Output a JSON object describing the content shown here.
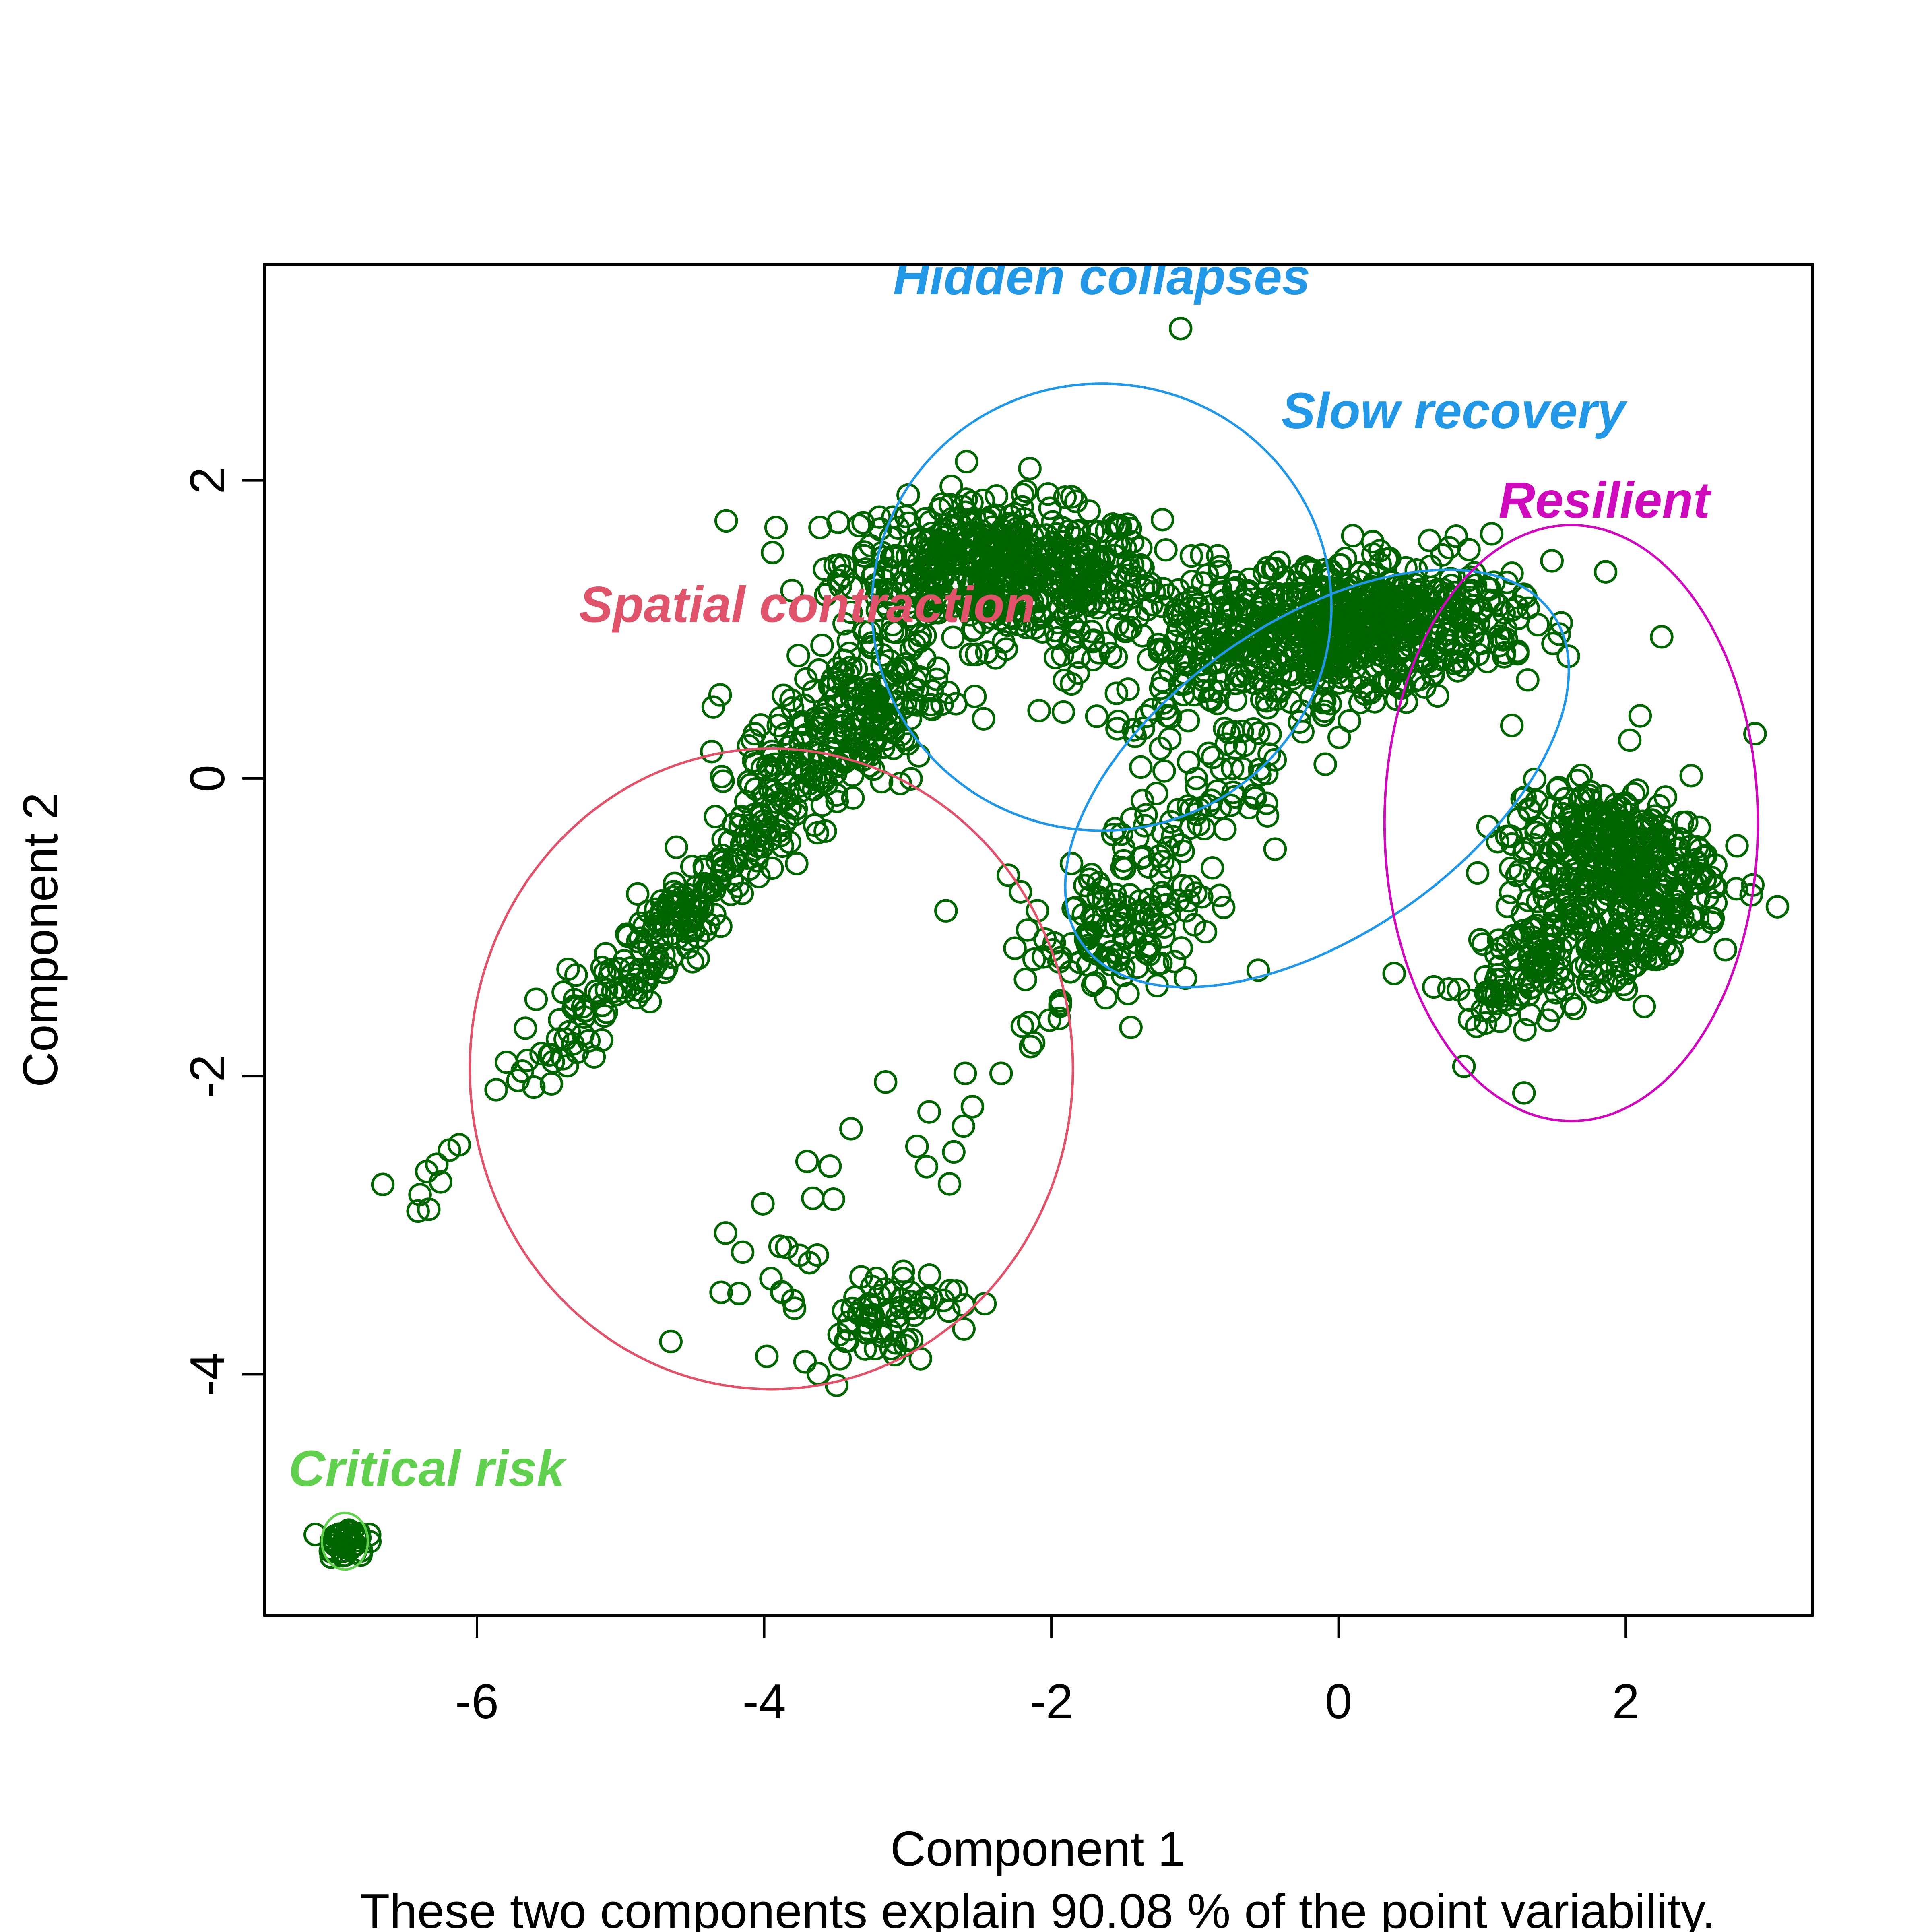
{
  "chart_data": {
    "type": "scatter",
    "xlabel": "Component 1",
    "ylabel": "Component 2",
    "subtitle": "These two components explain 90.08 % of the point variability.",
    "xlim": [
      -7.48,
      3.3
    ],
    "ylim": [
      -5.62,
      3.45
    ],
    "xticks": [
      -6,
      -4,
      -2,
      0,
      2
    ],
    "yticks": [
      -4,
      -2,
      0,
      2
    ],
    "point_color": "#006400",
    "point_shape": "open-circle",
    "clusters": [
      {
        "name": "Spatial contraction",
        "color": "#DF536B",
        "center": [
          -3.95,
          -1.95
        ],
        "radii": [
          2.1,
          2.15
        ],
        "rotation_deg": 0,
        "label_anchor": [
          -3.7,
          1.05
        ],
        "label_text": "Spatial contraction"
      },
      {
        "name": "Hidden collapses",
        "color": "#2297E6",
        "center": [
          -1.65,
          1.15
        ],
        "radii": [
          1.6,
          1.5
        ],
        "rotation_deg": 0,
        "label_anchor": [
          -1.65,
          3.25
        ],
        "label_text": "Hidden collapses"
      },
      {
        "name": "Slow recovery",
        "color": "#2297E6",
        "center": [
          -0.15,
          0.0
        ],
        "radii": [
          2.0,
          1.05
        ],
        "rotation_deg": 35,
        "label_anchor": [
          0.8,
          2.35
        ],
        "label_text": "Slow recovery"
      },
      {
        "name": "Resilient",
        "color": "#CD0BBC",
        "center": [
          1.62,
          -0.3
        ],
        "radii": [
          1.3,
          2.0
        ],
        "rotation_deg": 0,
        "label_anchor": [
          1.85,
          1.75
        ],
        "label_text": "Resilient"
      },
      {
        "name": "Critical risk",
        "color": "#61D04F",
        "center": [
          -6.92,
          -5.12
        ],
        "radii": [
          0.16,
          0.19
        ],
        "rotation_deg": 0,
        "label_anchor": [
          -6.35,
          -4.75
        ],
        "label_text": "Critical risk"
      }
    ],
    "point_groups": [
      {
        "name": "Hidden collapses core",
        "center": [
          -2.35,
          1.4
        ],
        "spread": [
          0.55,
          0.22
        ],
        "n": 520,
        "corr": -0.1
      },
      {
        "name": "Slow recovery band",
        "center": [
          -0.35,
          0.95
        ],
        "spread": [
          0.7,
          0.28
        ],
        "n": 520,
        "corr": 0.25
      },
      {
        "name": "Slow recovery tail",
        "center": [
          0.45,
          1.05
        ],
        "spread": [
          0.4,
          0.18
        ],
        "n": 220,
        "corr": 0.1
      },
      {
        "name": "Spatial contraction arm",
        "center": [
          -4.55,
          -0.9
        ],
        "spread": [
          0.7,
          0.7
        ],
        "n": 260,
        "corr": 0.97
      },
      {
        "name": "Spatial contraction lobe",
        "center": [
          -3.45,
          0.35
        ],
        "spread": [
          0.35,
          0.3
        ],
        "n": 200,
        "corr": 0.4
      },
      {
        "name": "Slow recovery lower branch",
        "center": [
          -1.55,
          -1.05
        ],
        "spread": [
          0.35,
          0.28
        ],
        "n": 110,
        "corr": 0.4
      },
      {
        "name": "Slow recovery branch right",
        "center": [
          -1.05,
          -0.2
        ],
        "spread": [
          0.35,
          0.45
        ],
        "n": 90,
        "corr": 0.5
      },
      {
        "name": "Spatial contraction bottom",
        "center": [
          -3.2,
          -3.6
        ],
        "spread": [
          0.28,
          0.15
        ],
        "n": 70,
        "corr": 0.2
      },
      {
        "name": "Spatial contraction sparse",
        "center": [
          -3.3,
          -2.7
        ],
        "spread": [
          0.55,
          0.55
        ],
        "n": 24,
        "corr": 0.8
      },
      {
        "name": "Resilient main",
        "center": [
          1.9,
          -0.5
        ],
        "spread": [
          0.35,
          0.22
        ],
        "n": 300,
        "corr": -0.2
      },
      {
        "name": "Resilient left leg",
        "center": [
          1.4,
          -1.1
        ],
        "spread": [
          0.2,
          0.3
        ],
        "n": 110,
        "corr": 0.7
      },
      {
        "name": "Resilient right leg",
        "center": [
          2.1,
          -1.05
        ],
        "spread": [
          0.3,
          0.2
        ],
        "n": 110,
        "corr": 0.6
      },
      {
        "name": "Resilient outliers",
        "center": [
          1.1,
          -1.3
        ],
        "spread": [
          0.3,
          0.3
        ],
        "n": 30,
        "corr": 0.3
      },
      {
        "name": "Critical risk",
        "center": [
          -6.92,
          -5.12
        ],
        "spread": [
          0.07,
          0.05
        ],
        "n": 40,
        "corr": 0
      }
    ],
    "outliers": [
      [
        -1.1,
        3.02
      ],
      [
        -2.15,
        2.08
      ],
      [
        2.9,
        0.3
      ],
      [
        2.25,
        0.95
      ],
      [
        1.6,
        0.82
      ],
      [
        2.1,
        0.42
      ],
      [
        -4.65,
        -3.78
      ],
      [
        -4.3,
        -3.45
      ],
      [
        -4.15,
        -3.18
      ],
      [
        -2.35,
        -1.98
      ],
      [
        -2.6,
        -1.98
      ],
      [
        -2.3,
        -0.65
      ]
    ]
  }
}
